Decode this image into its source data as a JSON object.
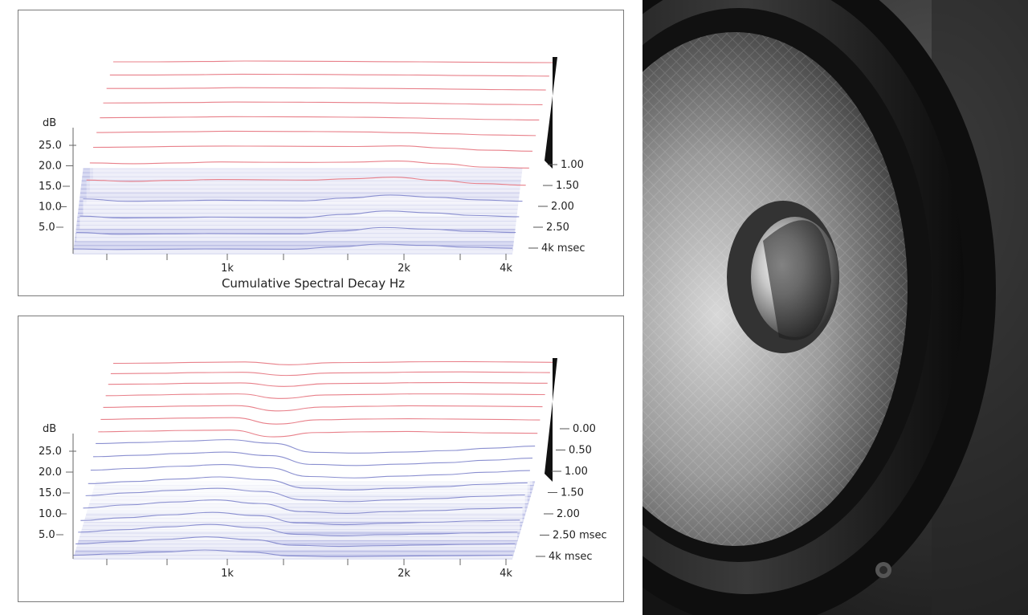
{
  "chart_data": [
    {
      "type": "waterfall",
      "title": "",
      "caption": "Cumulative Spectral Decay Hz",
      "ylabel": "dB",
      "y_ticks": [
        "25.0",
        "20.0",
        "15.0",
        "10.0",
        "5.0"
      ],
      "x_ticks": [
        "1k",
        "2k",
        "4k"
      ],
      "time_ticks": [
        "1.00",
        "1.50",
        "2.00",
        "2.50",
        "4k msec"
      ],
      "colors": {
        "early": "#e8808a",
        "late": "#8a8fd0",
        "fill": "#b9bde8"
      },
      "slices_early": [
        [
          27,
          27,
          27.2,
          27.5,
          27.4,
          27.3,
          27.1,
          27,
          26.8,
          26.6,
          26.5
        ],
        [
          26.5,
          26.5,
          26.7,
          27,
          26.9,
          26.8,
          26.6,
          26.5,
          26.2,
          26,
          25.8
        ],
        [
          25.8,
          25.8,
          26,
          26.3,
          26.2,
          26.1,
          25.9,
          25.7,
          25.4,
          25.1,
          24.9
        ],
        [
          24.5,
          24.6,
          24.8,
          25.1,
          25,
          24.9,
          24.7,
          24.4,
          24,
          23.6,
          23.4
        ],
        [
          23,
          23.2,
          23.4,
          23.7,
          23.6,
          23.5,
          23.3,
          22.9,
          22.4,
          21.9,
          21.6
        ],
        [
          21.5,
          21.8,
          22,
          22.3,
          22.2,
          22.1,
          21.9,
          21.4,
          20.7,
          20,
          19.6
        ],
        [
          20,
          20.2,
          20.6,
          20.8,
          20.7,
          20.6,
          20.5,
          20.9,
          19.5,
          18.2,
          17.6
        ],
        [
          18,
          17.5,
          18,
          18.6,
          18.4,
          18.3,
          18.5,
          19.2,
          17.5,
          15.4,
          14.8
        ],
        [
          15,
          14.2,
          14.8,
          15.4,
          15.2,
          15,
          15.8,
          16.8,
          14.8,
          12.8,
          11.8
        ]
      ],
      "slices_late": [
        [
          11,
          9.5,
          9.8,
          10.2,
          10,
          9.8,
          11.5,
          13.4,
          12,
          10.4,
          9.6
        ],
        [
          8,
          6.8,
          7,
          7.4,
          7.2,
          7,
          9,
          11.2,
          10,
          8.4,
          7.6
        ],
        [
          5.5,
          4.4,
          4.6,
          4.8,
          4.7,
          4.6,
          6.4,
          8.6,
          7.6,
          6.2,
          5.5
        ],
        [
          3,
          2.6,
          2.8,
          3,
          2.9,
          2.8,
          4.2,
          6,
          5.2,
          4,
          3.4
        ]
      ]
    },
    {
      "type": "waterfall",
      "title": "",
      "ylabel": "dB",
      "y_ticks": [
        "25.0",
        "20.0",
        "15.0",
        "10.0",
        "5.0"
      ],
      "x_ticks": [
        "1k",
        "2k",
        "4k"
      ],
      "time_ticks": [
        "0.00",
        "0.50",
        "1.00",
        "1.50",
        "2.00",
        "2.50 msec",
        "4k msec"
      ],
      "colors": {
        "early": "#e8808a",
        "late": "#8a8fd0",
        "fill": "#b9bde8"
      },
      "slices_early": [
        [
          27,
          27.2,
          27.6,
          27.8,
          26.2,
          27.4,
          27.6,
          27.9,
          28,
          27.8,
          27.6
        ],
        [
          26.4,
          26.6,
          27,
          27.2,
          25.4,
          26.8,
          27,
          27.3,
          27.4,
          27.2,
          27
        ],
        [
          25.6,
          25.8,
          26.2,
          26.4,
          24.4,
          26,
          26.2,
          26.5,
          26.6,
          26.4,
          26.2
        ],
        [
          24.4,
          24.8,
          25.2,
          25.4,
          22.8,
          24.8,
          25.1,
          25.4,
          25.4,
          25.2,
          25
        ],
        [
          23,
          23.4,
          23.8,
          24,
          21,
          23.2,
          23.6,
          23.9,
          23.8,
          23.6,
          23.4
        ],
        [
          21.4,
          21.8,
          22.2,
          22.4,
          18.8,
          21.2,
          21.6,
          21.8,
          21.6,
          21.4,
          21.1
        ],
        [
          19.6,
          20,
          20.4,
          20.6,
          16.8,
          19.2,
          19.6,
          19.8,
          19.4,
          19,
          18.8
        ]
      ],
      "slices_late": [
        [
          18.2,
          18.8,
          19.6,
          20.4,
          18.4,
          13.2,
          12.8,
          13.4,
          14.2,
          15.6,
          16.8
        ],
        [
          16,
          16.8,
          17.8,
          18.6,
          16.6,
          11.6,
          11,
          11.8,
          12.6,
          14,
          15.2
        ],
        [
          13.6,
          14.6,
          15.8,
          16.8,
          15,
          10,
          9.2,
          10.2,
          11,
          12.4,
          13.4
        ],
        [
          11.2,
          12.4,
          13.8,
          15,
          13.4,
          8.6,
          7.6,
          8.6,
          9.4,
          10.8,
          11.6
        ],
        [
          9.6,
          11.2,
          12.6,
          13.8,
          12,
          7.2,
          6.2,
          7.2,
          8,
          9.2,
          10
        ],
        [
          7.8,
          9.6,
          11.2,
          12.4,
          10.4,
          5.8,
          4.8,
          5.8,
          6.4,
          7.4,
          8
        ],
        [
          6,
          7.6,
          9.2,
          10.6,
          8.8,
          4.6,
          3.6,
          4.4,
          5,
          5.8,
          6.2
        ],
        [
          4.6,
          6,
          7.6,
          9,
          7.2,
          3.4,
          2.6,
          3.2,
          3.6,
          4.2,
          4.6
        ],
        [
          3.2,
          4.4,
          5.8,
          7.2,
          5.6,
          2.4,
          1.8,
          2.2,
          2.6,
          3,
          3.2
        ],
        [
          2,
          2.8,
          3.8,
          5,
          3.8,
          1.6,
          1.2,
          1.4,
          1.6,
          1.8,
          2
        ]
      ]
    }
  ],
  "photo": {
    "description_icon": "speaker-woofer-icon"
  }
}
